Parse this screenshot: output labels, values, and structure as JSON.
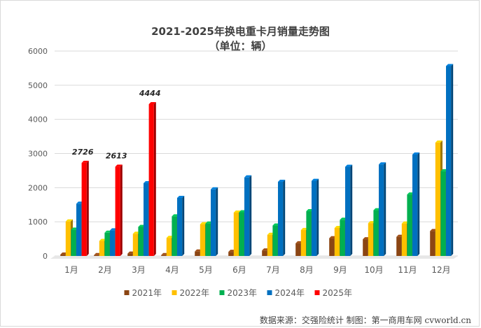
{
  "chart_data": {
    "type": "bar",
    "title": "2021-2025年换电重卡月销量走势图",
    "subtitle": "（单位：辆）",
    "xlabel": "",
    "ylabel": "",
    "categories": [
      "1月",
      "2月",
      "3月",
      "4月",
      "5月",
      "6月",
      "7月",
      "8月",
      "9月",
      "10月",
      "11月",
      "12月"
    ],
    "ylim": [
      0,
      6000
    ],
    "yticks": [
      0,
      1000,
      2000,
      3000,
      4000,
      5000,
      6000
    ],
    "grid": true,
    "legend_position": "bottom",
    "series": [
      {
        "name": "2021年",
        "color": "#8B4513",
        "values": [
          40,
          25,
          70,
          25,
          130,
          120,
          160,
          370,
          520,
          490,
          560,
          730
        ]
      },
      {
        "name": "2022年",
        "color": "#FFC000",
        "values": [
          1010,
          440,
          650,
          530,
          930,
          1270,
          620,
          760,
          820,
          960,
          950,
          3320
        ]
      },
      {
        "name": "2023年",
        "color": "#00B050",
        "values": [
          770,
          680,
          850,
          1160,
          950,
          1280,
          890,
          1310,
          1060,
          1340,
          1800,
          2480
        ]
      },
      {
        "name": "2024年",
        "color": "#0070C0",
        "values": [
          1530,
          750,
          2130,
          1700,
          1950,
          2300,
          2170,
          2200,
          2610,
          2680,
          2970,
          5560
        ]
      },
      {
        "name": "2025年",
        "color": "#FF0000",
        "values": [
          2726,
          2613,
          4444,
          null,
          null,
          null,
          null,
          null,
          null,
          null,
          null,
          null
        ]
      }
    ],
    "data_labels": [
      {
        "series": "2025年",
        "category": "1月",
        "text": "2726"
      },
      {
        "series": "2025年",
        "category": "2月",
        "text": "2613"
      },
      {
        "series": "2025年",
        "category": "3月",
        "text": "4444"
      }
    ]
  },
  "footer": {
    "source": "数据来源：交强险统计  制图：第一商用车网 cvworld.cn"
  }
}
